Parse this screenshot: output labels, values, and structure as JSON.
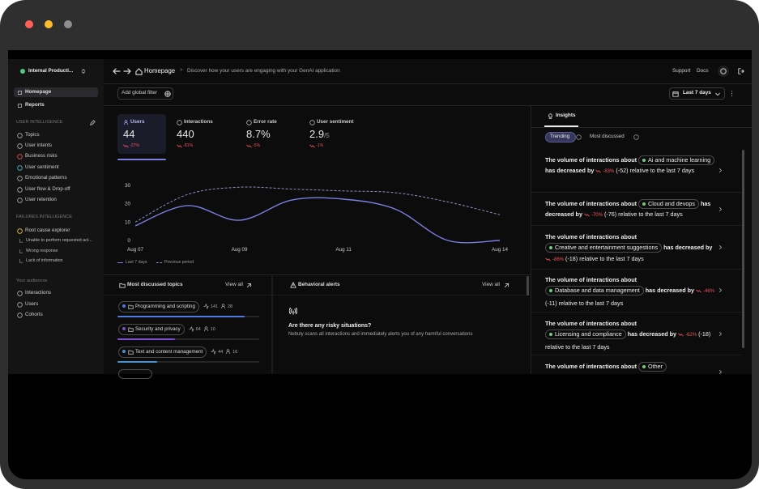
{
  "sidebar": {
    "workspace": "Internal Producti...",
    "nav": [
      "Homepage",
      "Reports"
    ],
    "sections": [
      {
        "title": "USER INTELLIGENCE",
        "items": [
          "Topics",
          "User intents",
          "Business risks",
          "User sentiment",
          "Emotional patterns",
          "User flow & Drop-off",
          "User retention"
        ]
      },
      {
        "title": "FAILURES INTELLIGENCE",
        "items": [
          "Root cause explorer",
          "Unable to perform requested act...",
          "Wrong response",
          "Lack of information"
        ]
      },
      {
        "title": "Your audiences",
        "items": [
          "Interactions",
          "Users",
          "Cohorts"
        ]
      }
    ]
  },
  "topbar": {
    "page": "Homepage",
    "separator": ">",
    "description": "Discover how your users are engaging with your GenAI application",
    "links": [
      "Support",
      "Docs"
    ]
  },
  "filters": {
    "add": "Add global filter",
    "range": "Last 7 days"
  },
  "metrics": [
    {
      "label": "Users",
      "value": "44",
      "delta": "-27%"
    },
    {
      "label": "Interactions",
      "value": "440",
      "delta": "-81%"
    },
    {
      "label": "Error rate",
      "value": "8.7%",
      "delta": "-5%"
    },
    {
      "label": "User sentiment",
      "value": "2.9",
      "suffix": "/5",
      "delta": "-1%"
    }
  ],
  "chart_data": {
    "type": "line",
    "categories": [
      "Aug 07",
      null,
      "Aug 09",
      null,
      "Aug 11",
      null,
      null,
      "Aug 14"
    ],
    "series": [
      {
        "name": "Last 7 days",
        "color": "#7b7fe0",
        "style": "solid",
        "values": [
          8,
          19,
          11,
          22,
          22.5,
          17,
          0,
          0
        ]
      },
      {
        "name": "Previous period",
        "color": "#8e90c0",
        "style": "dashed",
        "values": [
          10,
          25,
          29,
          28,
          27,
          26,
          21,
          14
        ]
      }
    ],
    "ylim": [
      0,
      30
    ],
    "yticks": [
      0,
      10,
      20,
      30
    ]
  },
  "topics": {
    "title": "Most discussed topics",
    "link": "View all",
    "items": [
      {
        "name": "Programming and scripting",
        "interactions": 141,
        "users": 28,
        "color": "#4f7be0"
      },
      {
        "name": "Security and privacy",
        "interactions": 64,
        "users": 10,
        "color": "#7b4fd0"
      },
      {
        "name": "Text and content management",
        "interactions": 44,
        "users": 16,
        "color": "#4a8fd0"
      }
    ]
  },
  "alerts": {
    "title": "Behavioral alerts",
    "link": "View all",
    "heading": "Are there any risky situations?",
    "text": "Nebuly scans all interactions and immediately alerts you of any harmful conversations"
  },
  "insights": {
    "tab": "Insights",
    "filters": [
      "Trending",
      "Most discussed"
    ],
    "items": [
      {
        "lead": "The volume of interactions about",
        "topic": "Ai and machine learning",
        "verb": "has decreased by",
        "change": "-83%",
        "delta": "(-52)",
        "tail": "relative to the last 7 days"
      },
      {
        "lead": "The volume of interactions about",
        "topic": "Cloud and devops",
        "verb": "has decreased by",
        "change": "-70%",
        "delta": "(-76)",
        "tail": "relative to the last 7 days"
      },
      {
        "lead": "The volume of interactions about",
        "topic": "Creative and entertainment suggestions",
        "verb": "has decreased by",
        "change": "-86%",
        "delta": "(-18)",
        "tail": "relative to the last 7 days"
      },
      {
        "lead": "The volume of interactions about",
        "topic": "Database and data management",
        "verb": "has decreased by",
        "change": "-46%",
        "delta": "(-11)",
        "tail": "relative to the last 7 days"
      },
      {
        "lead": "The volume of interactions about",
        "topic": "Licensing and compliance",
        "verb": "has decreased by",
        "change": "-62%",
        "delta": "(-18)",
        "tail": "relative to the last 7 days"
      },
      {
        "lead": "The volume of interactions about",
        "topic": "Other"
      }
    ]
  }
}
